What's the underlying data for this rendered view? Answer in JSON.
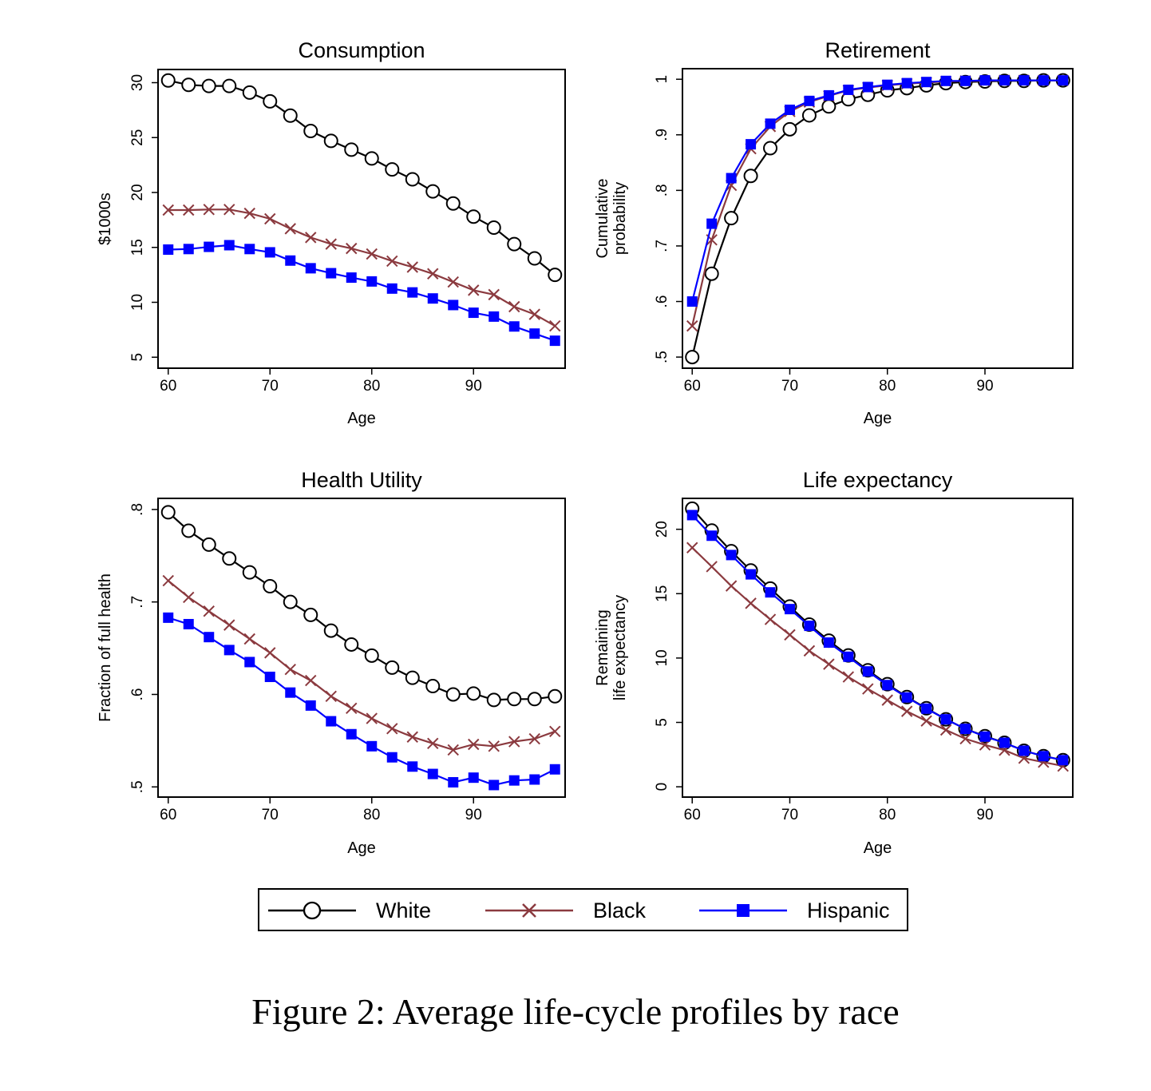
{
  "caption": "Figure 2: Average life-cycle profiles by race",
  "legend": {
    "items": [
      {
        "key": "white",
        "label": "White"
      },
      {
        "key": "black",
        "label": "Black"
      },
      {
        "key": "hispanic",
        "label": "Hispanic"
      }
    ]
  },
  "series_styles": {
    "white": {
      "color": "#000000",
      "marker": "hollow-circle"
    },
    "black": {
      "color": "#8b3a3f",
      "marker": "x"
    },
    "hispanic": {
      "color": "#0000ff",
      "marker": "filled-square"
    }
  },
  "chart_data": [
    {
      "id": "consumption",
      "type": "line",
      "title": "Consumption",
      "xlabel": "Age",
      "ylabel": [
        "$1000s"
      ],
      "x": [
        60,
        62,
        64,
        66,
        68,
        70,
        72,
        74,
        76,
        78,
        80,
        82,
        84,
        86,
        88,
        90,
        92,
        94,
        96,
        98
      ],
      "xticks": [
        60,
        70,
        80,
        90
      ],
      "xtick_labels": [
        "60",
        "70",
        "80",
        "90"
      ],
      "yticks": [
        5,
        10,
        15,
        20,
        25,
        30
      ],
      "ytick_labels": [
        "5",
        "10",
        "15",
        "20",
        "25",
        "30"
      ],
      "xlim": [
        59,
        99
      ],
      "ylim": [
        4,
        31.2
      ],
      "grid": false,
      "series": [
        {
          "name": "White",
          "key": "white",
          "values": [
            30.2,
            29.8,
            29.7,
            29.7,
            29.1,
            28.3,
            27.0,
            25.6,
            24.7,
            23.9,
            23.1,
            22.1,
            21.2,
            20.1,
            19.0,
            17.8,
            16.8,
            15.3,
            14.0,
            12.5
          ]
        },
        {
          "name": "Black",
          "key": "black",
          "values": [
            18.4,
            18.4,
            18.45,
            18.45,
            18.1,
            17.6,
            16.7,
            15.9,
            15.3,
            14.9,
            14.4,
            13.75,
            13.2,
            12.6,
            11.85,
            11.1,
            10.7,
            9.6,
            8.9,
            7.85
          ]
        },
        {
          "name": "Hispanic",
          "key": "hispanic",
          "values": [
            14.8,
            14.85,
            15.05,
            15.2,
            14.85,
            14.55,
            13.8,
            13.1,
            12.65,
            12.25,
            11.9,
            11.25,
            10.9,
            10.35,
            9.75,
            9.05,
            8.7,
            7.8,
            7.15,
            6.5
          ]
        }
      ]
    },
    {
      "id": "retirement",
      "type": "line",
      "title": "Retirement",
      "xlabel": "Age",
      "ylabel": [
        "Cumulative",
        "probability"
      ],
      "x": [
        60,
        62,
        64,
        66,
        68,
        70,
        72,
        74,
        76,
        78,
        80,
        82,
        84,
        86,
        88,
        90,
        92,
        94,
        96,
        98
      ],
      "xticks": [
        60,
        70,
        80,
        90
      ],
      "xtick_labels": [
        "60",
        "70",
        "80",
        "90"
      ],
      "yticks": [
        0.5,
        0.6,
        0.7,
        0.8,
        0.9,
        1.0
      ],
      "ytick_labels": [
        ".5",
        ".6",
        ".7",
        ".8",
        ".9",
        "1"
      ],
      "xlim": [
        59,
        99
      ],
      "ylim": [
        0.48,
        1.019
      ],
      "grid": false,
      "series": [
        {
          "name": "White",
          "key": "white",
          "values": [
            0.5,
            0.65,
            0.75,
            0.826,
            0.876,
            0.91,
            0.935,
            0.951,
            0.964,
            0.972,
            0.98,
            0.984,
            0.989,
            0.993,
            0.995,
            0.996,
            0.997,
            0.997,
            0.998,
            0.998
          ]
        },
        {
          "name": "Black",
          "key": "black",
          "values": [
            0.556,
            0.711,
            0.809,
            0.875,
            0.915,
            0.942,
            0.959,
            0.97,
            0.98,
            0.985,
            0.989,
            0.992,
            0.994,
            0.996,
            0.997,
            0.997,
            0.998,
            0.998,
            0.998,
            0.998
          ]
        },
        {
          "name": "Hispanic",
          "key": "hispanic",
          "values": [
            0.6,
            0.74,
            0.822,
            0.883,
            0.92,
            0.945,
            0.961,
            0.971,
            0.981,
            0.986,
            0.99,
            0.993,
            0.995,
            0.997,
            0.997,
            0.998,
            0.998,
            0.998,
            0.998,
            0.998
          ]
        }
      ]
    },
    {
      "id": "health-utility",
      "type": "line",
      "title": "Health Utility",
      "xlabel": "Age",
      "ylabel": [
        "Fraction of full health"
      ],
      "x": [
        60,
        62,
        64,
        66,
        68,
        70,
        72,
        74,
        76,
        78,
        80,
        82,
        84,
        86,
        88,
        90,
        92,
        94,
        96,
        98
      ],
      "xticks": [
        60,
        70,
        80,
        90
      ],
      "xtick_labels": [
        "60",
        "70",
        "80",
        "90"
      ],
      "yticks": [
        0.5,
        0.6,
        0.7,
        0.8
      ],
      "ytick_labels": [
        ".5",
        ".6",
        ".7",
        ".8"
      ],
      "xlim": [
        59,
        99
      ],
      "ylim": [
        0.489,
        0.812
      ],
      "grid": false,
      "series": [
        {
          "name": "White",
          "key": "white",
          "values": [
            0.797,
            0.777,
            0.762,
            0.747,
            0.732,
            0.717,
            0.7,
            0.686,
            0.669,
            0.654,
            0.642,
            0.629,
            0.618,
            0.609,
            0.6,
            0.601,
            0.594,
            0.595,
            0.595,
            0.598
          ]
        },
        {
          "name": "Black",
          "key": "black",
          "values": [
            0.723,
            0.705,
            0.69,
            0.675,
            0.66,
            0.645,
            0.627,
            0.615,
            0.598,
            0.585,
            0.574,
            0.563,
            0.554,
            0.547,
            0.54,
            0.546,
            0.544,
            0.549,
            0.552,
            0.56
          ]
        },
        {
          "name": "Hispanic",
          "key": "hispanic",
          "values": [
            0.683,
            0.676,
            0.662,
            0.648,
            0.635,
            0.619,
            0.602,
            0.588,
            0.571,
            0.557,
            0.544,
            0.532,
            0.522,
            0.514,
            0.505,
            0.51,
            0.502,
            0.507,
            0.508,
            0.519
          ]
        }
      ]
    },
    {
      "id": "life-expectancy",
      "type": "line",
      "title": "Life expectancy",
      "xlabel": "Age",
      "ylabel": [
        "Remaining",
        "life expectancy"
      ],
      "x": [
        60,
        62,
        64,
        66,
        68,
        70,
        72,
        74,
        76,
        78,
        80,
        82,
        84,
        86,
        88,
        90,
        92,
        94,
        96,
        98
      ],
      "xticks": [
        60,
        70,
        80,
        90
      ],
      "xtick_labels": [
        "60",
        "70",
        "80",
        "90"
      ],
      "yticks": [
        0,
        5,
        10,
        15,
        20
      ],
      "ytick_labels": [
        "0",
        "5",
        "10",
        "15",
        "20"
      ],
      "xlim": [
        59,
        99
      ],
      "ylim": [
        -0.8,
        22.4
      ],
      "grid": false,
      "series": [
        {
          "name": "White",
          "key": "white",
          "values": [
            21.6,
            19.9,
            18.3,
            16.8,
            15.4,
            14.0,
            12.6,
            11.35,
            10.2,
            9.05,
            7.97,
            6.97,
            6.1,
            5.24,
            4.5,
            3.93,
            3.42,
            2.8,
            2.38,
            2.07
          ]
        },
        {
          "name": "Black",
          "key": "black",
          "values": [
            18.57,
            17.1,
            15.6,
            14.25,
            13.0,
            11.8,
            10.56,
            9.52,
            8.53,
            7.6,
            6.73,
            5.86,
            5.11,
            4.41,
            3.73,
            3.25,
            2.84,
            2.22,
            1.91,
            1.61
          ]
        },
        {
          "name": "Hispanic",
          "key": "hispanic",
          "values": [
            21.1,
            19.5,
            18.0,
            16.5,
            15.1,
            13.8,
            12.5,
            11.2,
            10.1,
            8.96,
            7.9,
            6.94,
            6.07,
            5.24,
            4.5,
            3.9,
            3.42,
            2.8,
            2.38,
            2.07
          ]
        }
      ]
    }
  ]
}
